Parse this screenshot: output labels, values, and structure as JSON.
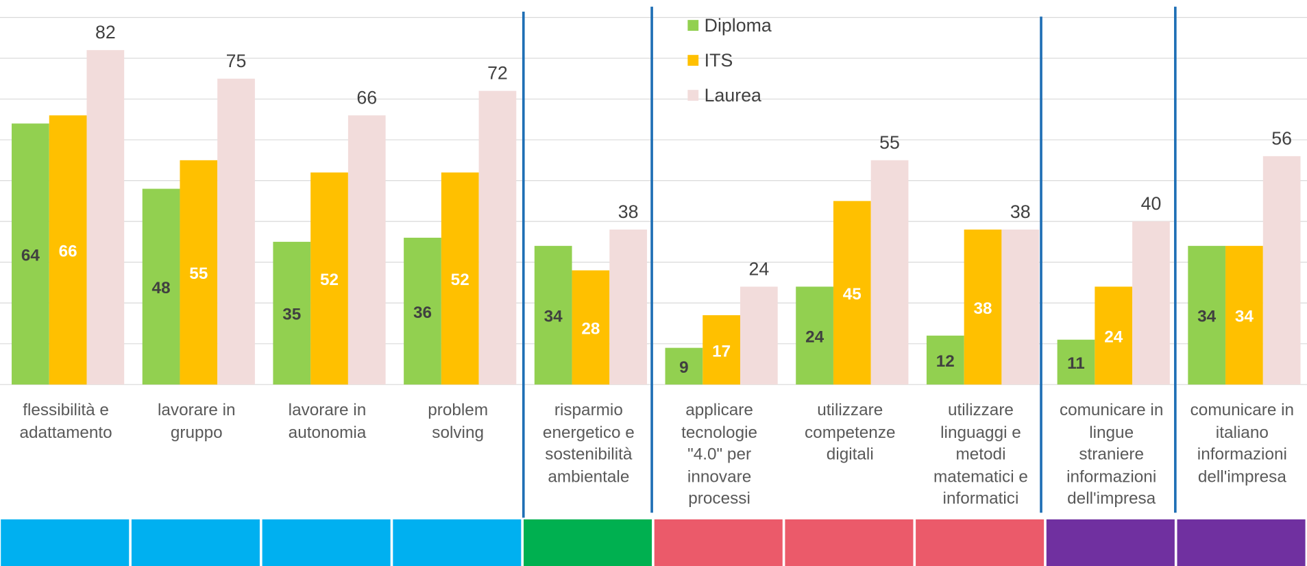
{
  "chart_data": {
    "type": "bar",
    "categories": [
      "flessibilità e\nadattamento",
      "lavorare in\ngruppo",
      "lavorare in\nautonomia",
      "problem\nsolving",
      "risparmio\nenergetico e\nsostenibilità\nambientale",
      "applicare\ntecnologie\n\"4.0\" per\ninnovare\nprocessi",
      "utilizzare\ncompetenze\ndigitali",
      "utilizzare\nlinguaggi e\nmetodi\nmatematici e\ninformatici",
      "comunicare in\nlingue\nstraniere\ninformazioni\ndell'impresa",
      "comunicare in\nitaliano\ninformazioni\ndell'impresa"
    ],
    "series": [
      {
        "name": "Diploma",
        "color": "#92d050",
        "values": [
          64,
          48,
          35,
          36,
          34,
          9,
          24,
          12,
          11,
          34
        ]
      },
      {
        "name": "ITS",
        "color": "#ffc000",
        "values": [
          66,
          55,
          52,
          52,
          28,
          17,
          45,
          38,
          24,
          34
        ]
      },
      {
        "name": "Laurea",
        "color": "#f2dcdb",
        "values": [
          82,
          75,
          66,
          72,
          38,
          24,
          55,
          38,
          40,
          56
        ]
      }
    ],
    "category_colors": [
      "#00b0f0",
      "#00b0f0",
      "#00b0f0",
      "#00b0f0",
      "#00b050",
      "#eb5a6a",
      "#eb5a6a",
      "#eb5a6a",
      "#7030a0",
      "#7030a0"
    ],
    "ylim": [
      0,
      90
    ],
    "yticks": [
      0,
      10,
      20,
      30,
      40,
      50,
      60,
      70,
      80,
      90
    ],
    "grid": true,
    "legend": "top"
  }
}
